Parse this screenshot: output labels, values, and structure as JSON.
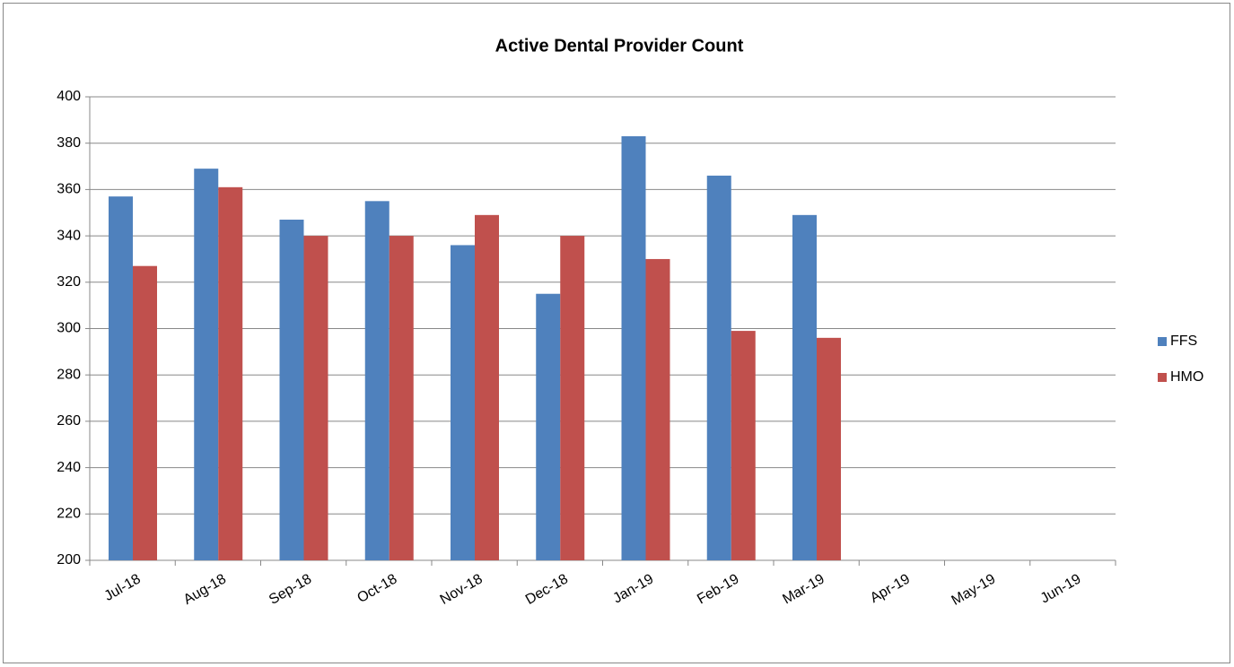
{
  "chart_data": {
    "type": "bar",
    "title": "Active Dental Provider Count",
    "categories": [
      "Jul-18",
      "Aug-18",
      "Sep-18",
      "Oct-18",
      "Nov-18",
      "Dec-18",
      "Jan-19",
      "Feb-19",
      "Mar-19",
      "Apr-19",
      "May-19",
      "Jun-19"
    ],
    "series": [
      {
        "name": "FFS",
        "color": "#4f81bd",
        "values": [
          357,
          369,
          347,
          355,
          336,
          315,
          383,
          366,
          349,
          null,
          null,
          null
        ]
      },
      {
        "name": "HMO",
        "color": "#c0504d",
        "values": [
          327,
          361,
          340,
          340,
          349,
          340,
          330,
          299,
          296,
          null,
          null,
          null
        ]
      }
    ],
    "ylim": [
      200,
      400
    ],
    "yticks": [
      200,
      220,
      240,
      260,
      280,
      300,
      320,
      340,
      360,
      380,
      400
    ],
    "grid": true,
    "legend": "right"
  }
}
